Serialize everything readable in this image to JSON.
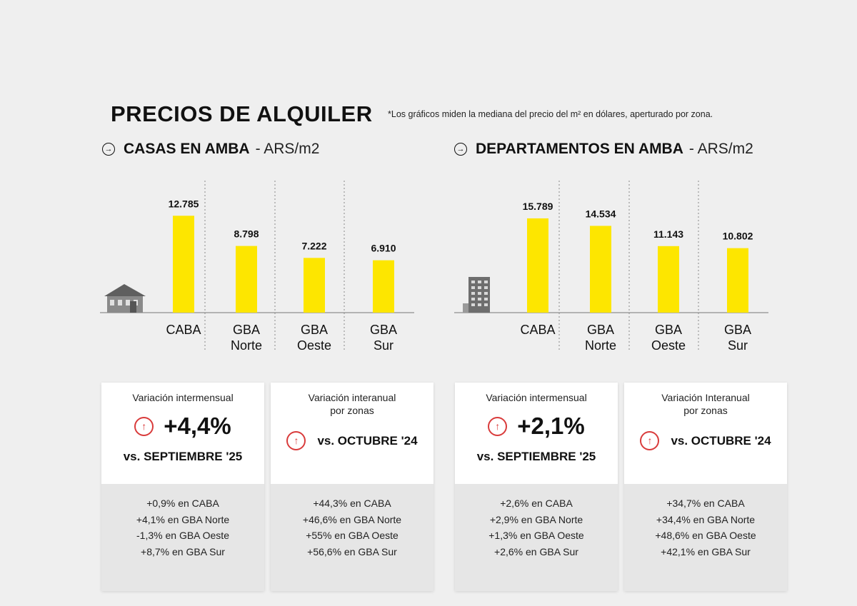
{
  "title": "PRECIOS DE ALQUILER",
  "note": "*Los gráficos miden la mediana del precio del m² en dólares, aperturado por zona.",
  "colors": {
    "bar": "#fde600",
    "accent_red": "#d93b3b"
  },
  "sections": [
    {
      "title_bold": "CASAS EN AMBA",
      "title_light": " - ARS/m2",
      "icon": "house-icon"
    },
    {
      "title_bold": "DEPARTAMENTOS EN AMBA",
      "title_light": " - ARS/m2",
      "icon": "building-icon"
    }
  ],
  "chart_data": [
    {
      "type": "bar",
      "title": "CASAS EN AMBA - ARS/m2",
      "categories": [
        "CABA",
        "GBA Norte",
        "GBA Oeste",
        "GBA Sur"
      ],
      "values": [
        12785,
        8798,
        7222,
        6910
      ],
      "value_labels": [
        "12.785",
        "8.798",
        "7.222",
        "6.910"
      ],
      "ylim": [
        0,
        13000
      ]
    },
    {
      "type": "bar",
      "title": "DEPARTAMENTOS EN AMBA - ARS/m2",
      "categories": [
        "CABA",
        "GBA Norte",
        "GBA Oeste",
        "GBA Sur"
      ],
      "values": [
        15789,
        14534,
        11143,
        10802
      ],
      "value_labels": [
        "15.789",
        "14.534",
        "11.143",
        "10.802"
      ],
      "ylim": [
        0,
        16500
      ]
    }
  ],
  "cards": [
    {
      "subtitle_1": "Variación intermensual",
      "subtitle_2": "",
      "big_value": "+4,4%",
      "vs_label": "vs. SEPTIEMBRE '25",
      "lines": [
        "+0,9% en CABA",
        "+4,1% en GBA Norte",
        "-1,3% en GBA Oeste",
        "+8,7% en GBA Sur"
      ]
    },
    {
      "subtitle_1": "Variación interanual",
      "subtitle_2": "por zonas",
      "big_value": "",
      "vs_label": "vs. OCTUBRE '24",
      "lines": [
        "+44,3% en CABA",
        "+46,6% en GBA Norte",
        "+55% en GBA Oeste",
        "+56,6% en GBA Sur"
      ]
    },
    {
      "subtitle_1": "Variación intermensual",
      "subtitle_2": "",
      "big_value": "+2,1%",
      "vs_label": "vs. SEPTIEMBRE '25",
      "lines": [
        "+2,6% en CABA",
        "+2,9% en GBA Norte",
        "+1,3% en GBA Oeste",
        "+2,6% en GBA Sur"
      ]
    },
    {
      "subtitle_1": "Variación Interanual",
      "subtitle_2": "por zonas",
      "big_value": "",
      "vs_label": "vs. OCTUBRE '24",
      "lines": [
        "+34,7% en CABA",
        "+34,4% en GBA Norte",
        "+48,6% en GBA Oeste",
        "+42,1% en GBA Sur"
      ]
    }
  ]
}
